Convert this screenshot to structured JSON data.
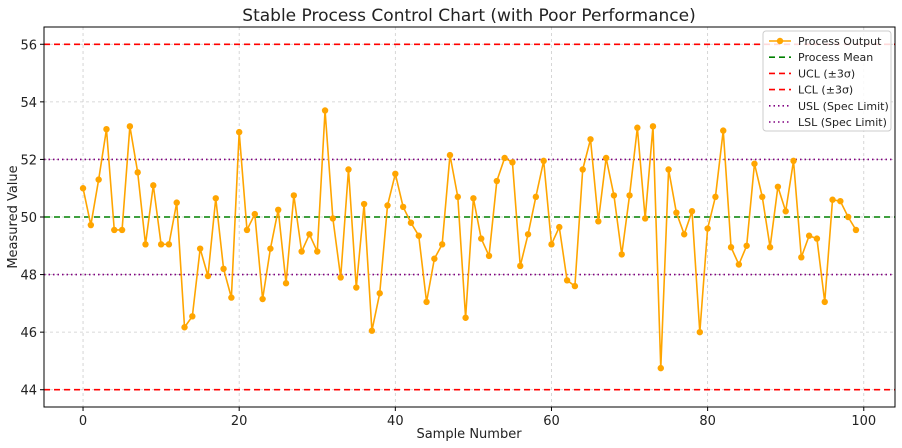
{
  "chart_data": {
    "type": "line",
    "title": "Stable Process Control Chart (with Poor Performance)",
    "xlabel": "Sample Number",
    "ylabel": "Measured Value",
    "xlim": [
      -5,
      104
    ],
    "ylim": [
      43.4,
      56.6
    ],
    "xticks": [
      0,
      20,
      40,
      60,
      80,
      100
    ],
    "yticks": [
      44,
      46,
      48,
      50,
      52,
      54,
      56
    ],
    "grid": true,
    "legend_position": "top-right",
    "series": [
      {
        "name": "Process Output",
        "color": "#FFA500",
        "x": [
          0,
          1,
          2,
          3,
          4,
          5,
          6,
          7,
          8,
          9,
          10,
          11,
          12,
          13,
          14,
          15,
          16,
          17,
          18,
          19,
          20,
          21,
          22,
          23,
          24,
          25,
          26,
          27,
          28,
          29,
          30,
          31,
          32,
          33,
          34,
          35,
          36,
          37,
          38,
          39,
          40,
          41,
          42,
          43,
          44,
          45,
          46,
          47,
          48,
          49,
          50,
          51,
          52,
          53,
          54,
          55,
          56,
          57,
          58,
          59,
          60,
          61,
          62,
          63,
          64,
          65,
          66,
          67,
          68,
          69,
          70,
          71,
          72,
          73,
          74,
          75,
          76,
          77,
          78,
          79,
          80,
          81,
          82,
          83,
          84,
          85,
          86,
          87,
          88,
          89,
          90,
          91,
          92,
          93,
          94,
          95,
          96,
          97,
          98,
          99
        ],
        "values": [
          51.0,
          49.72,
          51.3,
          53.05,
          49.55,
          49.55,
          53.15,
          51.55,
          49.05,
          51.1,
          49.05,
          49.05,
          50.5,
          46.17,
          46.55,
          48.9,
          47.95,
          50.65,
          48.2,
          47.2,
          52.95,
          49.55,
          50.1,
          47.15,
          48.9,
          50.25,
          47.7,
          50.75,
          48.8,
          49.4,
          48.8,
          53.7,
          49.95,
          47.9,
          51.65,
          47.55,
          50.45,
          46.05,
          47.35,
          50.4,
          51.5,
          50.35,
          49.8,
          49.35,
          47.05,
          48.55,
          49.05,
          52.15,
          50.7,
          46.5,
          50.65,
          49.25,
          48.65,
          51.25,
          52.05,
          51.9,
          48.3,
          49.4,
          50.7,
          51.95,
          49.05,
          49.65,
          47.8,
          47.6,
          51.65,
          52.7,
          49.85,
          52.05,
          50.75,
          48.7,
          50.75,
          53.1,
          49.95,
          53.15,
          44.75,
          51.65,
          50.15,
          49.4,
          50.2,
          46.0,
          49.6,
          50.7,
          53.0,
          48.95,
          48.35,
          49.0,
          51.85,
          50.7,
          48.95,
          51.05,
          50.2,
          51.95,
          48.6,
          49.35,
          49.25,
          47.05,
          50.6,
          50.55,
          50.0,
          49.55
        ]
      }
    ],
    "reference_lines": [
      {
        "name": "Process Mean",
        "value": 50,
        "color": "#008000",
        "style": "dashed"
      },
      {
        "name": "UCL (±3σ)",
        "value": 56,
        "color": "#FF0000",
        "style": "dashed"
      },
      {
        "name": "LCL (±3σ)",
        "value": 44,
        "color": "#FF0000",
        "style": "dashed"
      },
      {
        "name": "USL (Spec Limit)",
        "value": 52,
        "color": "#800080",
        "style": "dotted"
      },
      {
        "name": "LSL (Spec Limit)",
        "value": 48,
        "color": "#800080",
        "style": "dotted"
      }
    ]
  }
}
